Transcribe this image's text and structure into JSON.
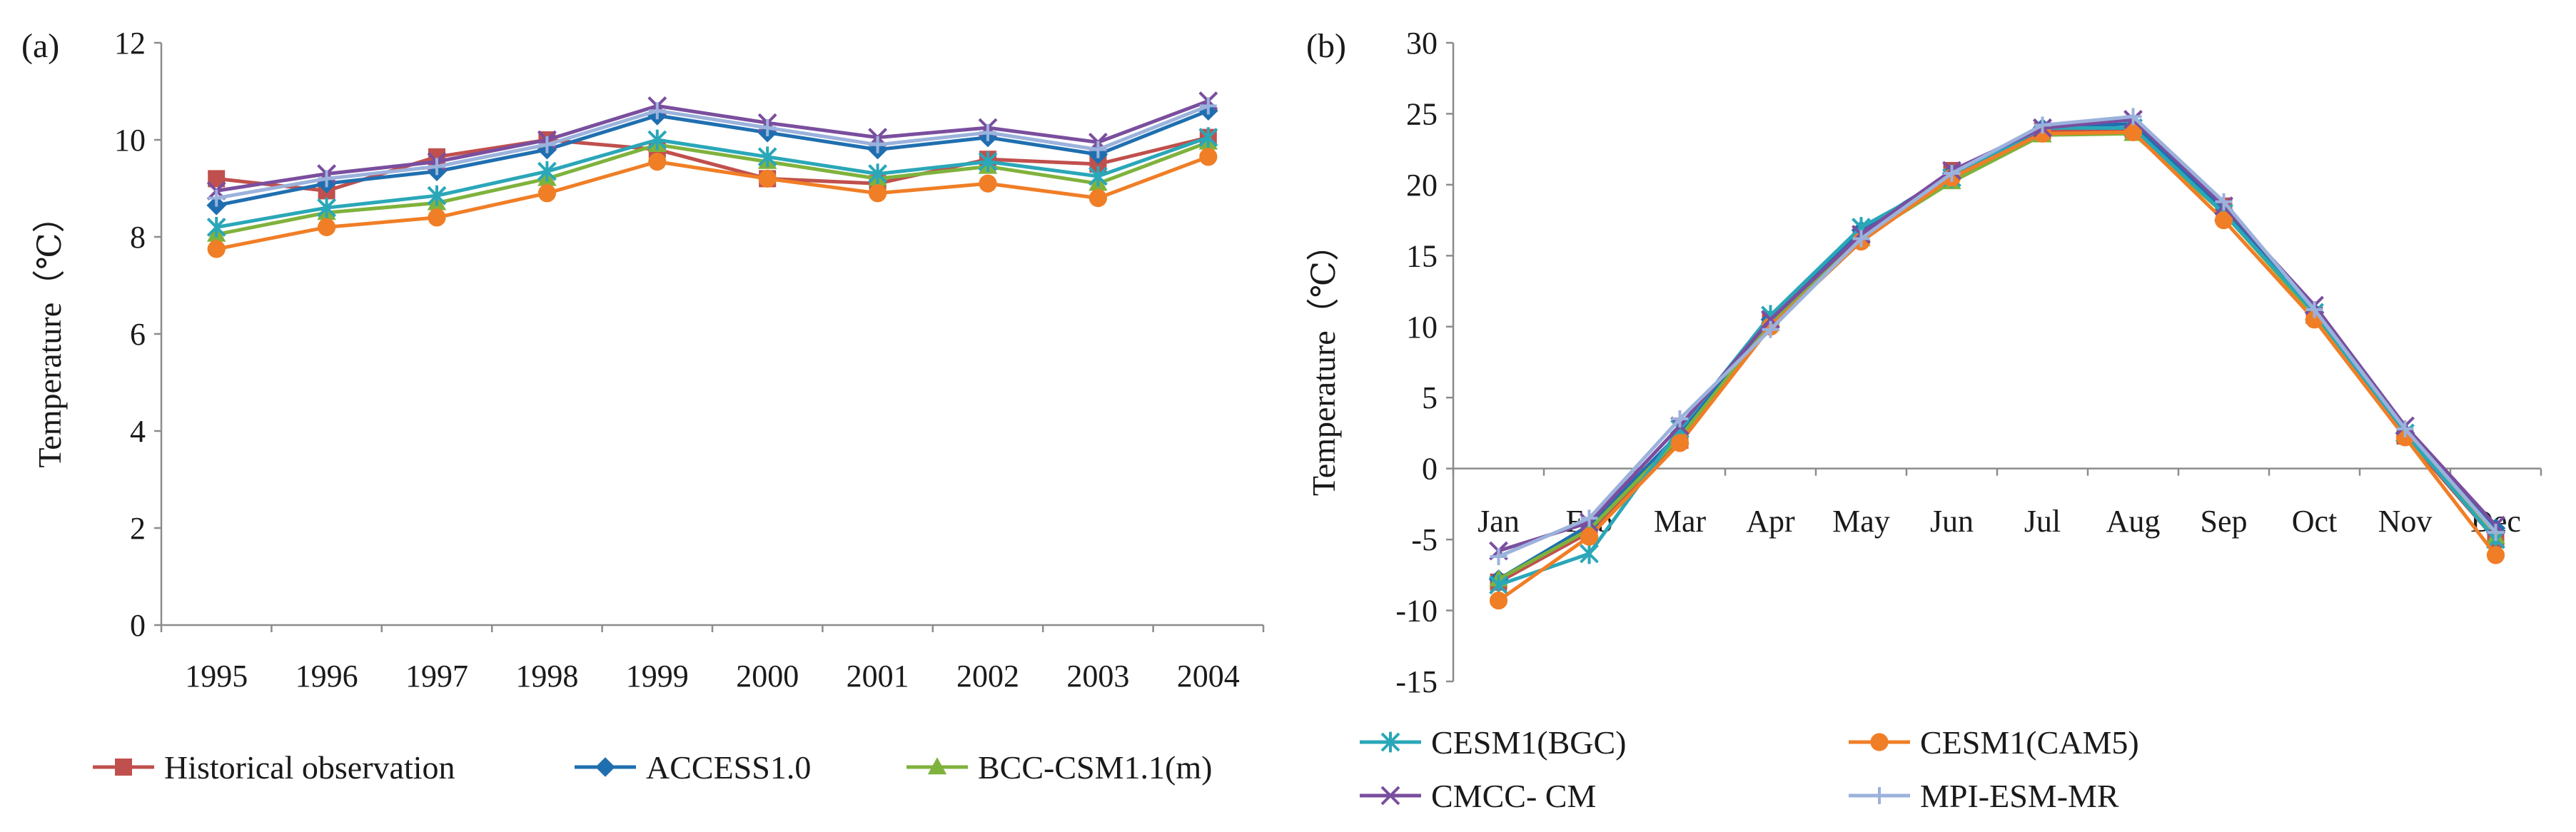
{
  "figure": {
    "panel_a_label": "(a)",
    "panel_b_label": "(b)"
  },
  "chart_data": [
    {
      "panel": "(a)",
      "type": "line",
      "title": "",
      "xlabel": "",
      "ylabel": "Temperature（℃）",
      "categories": [
        "1995",
        "1996",
        "1997",
        "1998",
        "1999",
        "2000",
        "2001",
        "2002",
        "2003",
        "2004"
      ],
      "ylim": [
        0,
        12
      ],
      "yticks": [
        0,
        2,
        4,
        6,
        8,
        10,
        12
      ],
      "grid": false,
      "legend_position": "bottom",
      "series": [
        {
          "name": "Historical observation",
          "color": "#c0504d",
          "marker": "square",
          "values": [
            9.2,
            8.95,
            9.65,
            10.0,
            9.8,
            9.2,
            9.1,
            9.6,
            9.5,
            10.05
          ]
        },
        {
          "name": "ACCESS1.0",
          "color": "#1f6fb0",
          "marker": "diamond",
          "values": [
            8.65,
            9.1,
            9.35,
            9.8,
            10.5,
            10.15,
            9.8,
            10.05,
            9.7,
            10.6
          ]
        },
        {
          "name": "BCC-CSM1.1(m)",
          "color": "#7fb23c",
          "marker": "triangle",
          "values": [
            8.05,
            8.5,
            8.7,
            9.2,
            9.9,
            9.55,
            9.2,
            9.45,
            9.1,
            9.95
          ]
        },
        {
          "name": "CESM1(BGC)",
          "color": "#2aa7b8",
          "marker": "asterisk",
          "in_legend": false,
          "values": [
            8.2,
            8.6,
            8.85,
            9.35,
            10.0,
            9.65,
            9.3,
            9.55,
            9.25,
            10.05
          ]
        },
        {
          "name": "CESM1(CAM5)",
          "color": "#f07e26",
          "marker": "circle",
          "in_legend": false,
          "values": [
            7.75,
            8.2,
            8.4,
            8.9,
            9.55,
            9.2,
            8.9,
            9.1,
            8.8,
            9.65
          ]
        },
        {
          "name": "CMCC- CM",
          "color": "#7a4e9e",
          "marker": "x",
          "in_legend": false,
          "values": [
            8.95,
            9.3,
            9.55,
            10.0,
            10.7,
            10.35,
            10.05,
            10.25,
            9.95,
            10.8
          ]
        },
        {
          "name": "MPI-ESM-MR",
          "color": "#9bb2dc",
          "marker": "plus",
          "in_legend": false,
          "values": [
            8.8,
            9.2,
            9.45,
            9.9,
            10.6,
            10.25,
            9.9,
            10.15,
            9.8,
            10.7
          ]
        }
      ]
    },
    {
      "panel": "(b)",
      "type": "line",
      "title": "",
      "xlabel": "",
      "ylabel": "Temperature（℃）",
      "categories": [
        "Jan",
        "Feb",
        "Mar",
        "Apr",
        "May",
        "Jun",
        "Jul",
        "Aug",
        "Sep",
        "Oct",
        "Nov",
        "Dec"
      ],
      "ylim": [
        -15,
        30
      ],
      "yticks": [
        -15,
        -10,
        -5,
        0,
        5,
        10,
        15,
        20,
        25,
        30
      ],
      "grid": false,
      "legend_position": "bottom",
      "series": [
        {
          "name": "Historical observation",
          "color": "#c0504d",
          "marker": "square",
          "in_legend": false,
          "values": [
            -8.0,
            -4.5,
            2.0,
            10.5,
            16.5,
            21.0,
            23.8,
            23.9,
            18.5,
            10.8,
            2.3,
            -5.0
          ]
        },
        {
          "name": "ACCESS1.0",
          "color": "#1f6fb0",
          "marker": "diamond",
          "in_legend": false,
          "values": [
            -7.8,
            -4.0,
            2.5,
            10.5,
            16.8,
            20.8,
            24.0,
            24.3,
            18.2,
            11.0,
            2.5,
            -4.2
          ]
        },
        {
          "name": "BCC-CSM1.1(m)",
          "color": "#7fb23c",
          "marker": "triangle",
          "in_legend": false,
          "values": [
            -7.8,
            -4.3,
            2.2,
            10.2,
            16.2,
            20.2,
            23.5,
            23.6,
            18.0,
            10.8,
            2.4,
            -4.8
          ]
        },
        {
          "name": "CESM1(BGC)",
          "color": "#2aa7b8",
          "marker": "asterisk",
          "values": [
            -8.2,
            -6.0,
            2.8,
            10.8,
            17.0,
            20.5,
            24.0,
            24.0,
            18.0,
            11.0,
            2.5,
            -5.0
          ]
        },
        {
          "name": "CESM1(CAM5)",
          "color": "#f07e26",
          "marker": "circle",
          "values": [
            -9.3,
            -4.8,
            1.8,
            10.0,
            16.0,
            20.5,
            23.6,
            23.7,
            17.5,
            10.5,
            2.2,
            -6.1
          ]
        },
        {
          "name": "CMCC- CM",
          "color": "#7a4e9e",
          "marker": "x",
          "values": [
            -5.8,
            -3.8,
            3.0,
            10.5,
            16.5,
            21.0,
            24.0,
            24.6,
            18.5,
            11.5,
            3.0,
            -4.0
          ]
        },
        {
          "name": "MPI-ESM-MR",
          "color": "#9bb2dc",
          "marker": "plus",
          "values": [
            -6.2,
            -3.5,
            3.5,
            9.8,
            16.2,
            20.8,
            24.2,
            24.8,
            18.8,
            11.2,
            2.8,
            -4.5
          ]
        }
      ]
    }
  ]
}
